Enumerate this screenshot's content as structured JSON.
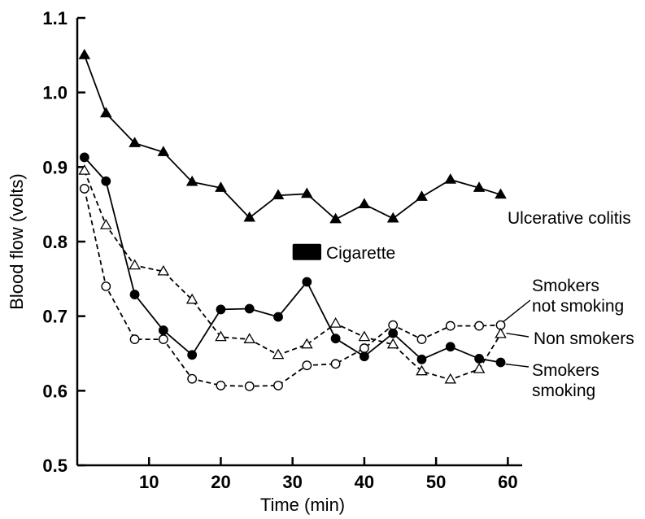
{
  "chart_data": {
    "type": "line",
    "xlabel": "Time (min)",
    "ylabel": "Blood flow (volts)",
    "xlim": [
      0,
      62
    ],
    "ylim": [
      0.5,
      1.1
    ],
    "x_ticks": [
      {
        "value": 10,
        "label": "10"
      },
      {
        "value": 20,
        "label": "20"
      },
      {
        "value": 30,
        "label": "30"
      },
      {
        "value": 40,
        "label": "40"
      },
      {
        "value": 50,
        "label": "50"
      },
      {
        "value": 60,
        "label": "60"
      }
    ],
    "y_ticks": [
      {
        "value": 0.5,
        "label": "0.5"
      },
      {
        "value": 0.6,
        "label": "0.6"
      },
      {
        "value": 0.7,
        "label": "0.7"
      },
      {
        "value": 0.8,
        "label": "0.8"
      },
      {
        "value": 0.9,
        "label": "0.9"
      },
      {
        "value": 1.0,
        "label": "1.0"
      },
      {
        "value": 1.1,
        "label": "1.1"
      }
    ],
    "grid": false,
    "series": [
      {
        "id": "ulcerative-colitis",
        "name": "Ulcerative colitis",
        "marker": "filled-triangle",
        "line_style": "solid",
        "x": [
          1,
          4,
          8,
          12,
          16,
          20,
          24,
          28,
          32,
          36,
          40,
          44,
          48,
          52,
          56,
          59
        ],
        "y": [
          1.05,
          0.972,
          0.932,
          0.92,
          0.88,
          0.872,
          0.832,
          0.862,
          0.864,
          0.83,
          0.85,
          0.831,
          0.86,
          0.883,
          0.872,
          0.863
        ]
      },
      {
        "id": "smokers-not-smoking",
        "name": "Smokers not smoking",
        "marker": "open-circle",
        "line_style": "dashed",
        "x": [
          1,
          4,
          8,
          12,
          16,
          20,
          24,
          28,
          32,
          36,
          40,
          44,
          48,
          52,
          56,
          59
        ],
        "y": [
          0.871,
          0.74,
          0.669,
          0.669,
          0.616,
          0.607,
          0.606,
          0.607,
          0.634,
          0.636,
          0.657,
          0.688,
          0.669,
          0.687,
          0.687,
          0.688
        ]
      },
      {
        "id": "non-smokers",
        "name": "Non smokers",
        "marker": "open-triangle",
        "line_style": "dashed",
        "x": [
          1,
          4,
          8,
          12,
          16,
          20,
          24,
          28,
          32,
          36,
          40,
          44,
          48,
          52,
          56,
          59
        ],
        "y": [
          0.895,
          0.822,
          0.768,
          0.76,
          0.722,
          0.672,
          0.669,
          0.648,
          0.662,
          0.69,
          0.672,
          0.662,
          0.626,
          0.615,
          0.629,
          0.676
        ]
      },
      {
        "id": "smokers-smoking",
        "name": "Smokers smoking",
        "marker": "filled-circle",
        "line_style": "solid",
        "x": [
          1,
          4,
          8,
          12,
          16,
          20,
          24,
          28,
          32,
          36,
          40,
          44,
          48,
          52,
          56,
          59
        ],
        "y": [
          0.913,
          0.881,
          0.729,
          0.681,
          0.648,
          0.709,
          0.71,
          0.699,
          0.746,
          0.67,
          0.646,
          0.677,
          0.642,
          0.659,
          0.643,
          0.638
        ]
      }
    ],
    "series_labels": [
      {
        "series": "ulcerative-colitis",
        "lines": [
          "Ulcerative colitis"
        ]
      },
      {
        "series": "smokers-not-smoking",
        "lines": [
          "Smokers",
          "not smoking"
        ]
      },
      {
        "series": "non-smokers",
        "lines": [
          "Non  smokers"
        ]
      },
      {
        "series": "smokers-smoking",
        "lines": [
          "Smokers",
          "smoking"
        ]
      }
    ],
    "annotation": {
      "label": "Cigarette",
      "x_start": 30,
      "x_end": 34,
      "y": 0.786
    }
  }
}
